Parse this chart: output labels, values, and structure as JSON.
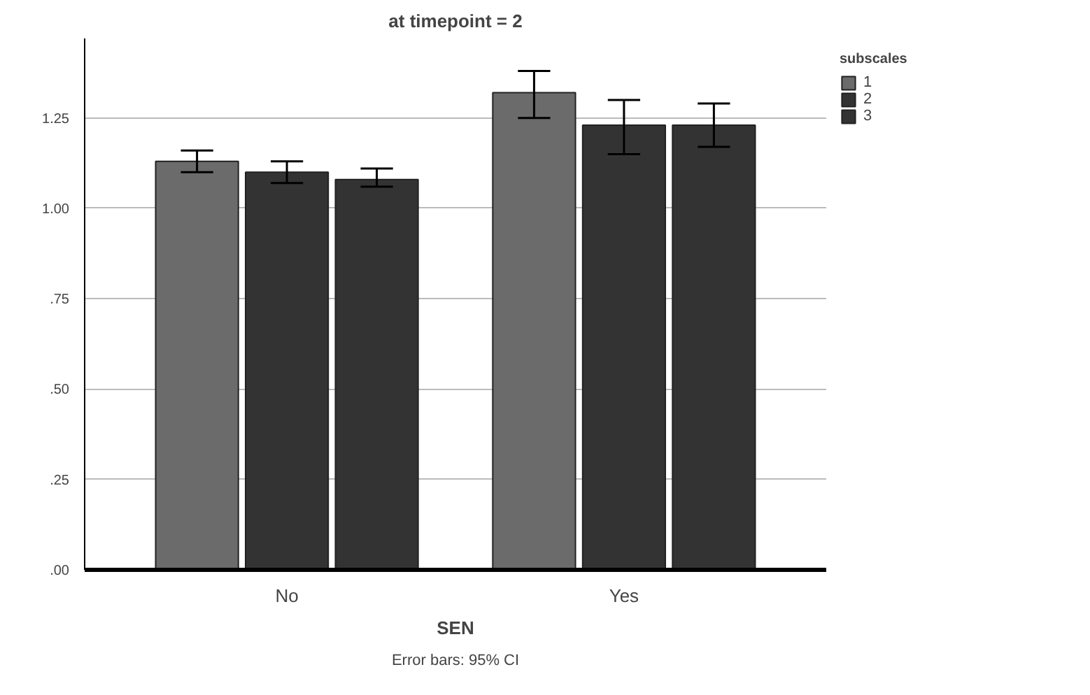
{
  "chart_data": {
    "type": "bar",
    "title": "at timepoint = 2",
    "xlabel": "SEN",
    "legend_title": "subscales",
    "categories": [
      "No",
      "Yes"
    ],
    "series": [
      {
        "name": "1",
        "color": "#6b6b6b",
        "values": [
          1.13,
          1.32
        ],
        "errors": [
          [
            1.1,
            1.16
          ],
          [
            1.25,
            1.38
          ]
        ]
      },
      {
        "name": "2",
        "color": "#333333",
        "values": [
          1.1,
          1.23
        ],
        "errors": [
          [
            1.07,
            1.13
          ],
          [
            1.15,
            1.3
          ]
        ]
      },
      {
        "name": "3",
        "color": "#333333",
        "values": [
          1.08,
          1.23
        ],
        "errors": [
          [
            1.06,
            1.11
          ],
          [
            1.17,
            1.29
          ]
        ]
      }
    ],
    "ylim": [
      0,
      1.47
    ],
    "yticks": [
      {
        "value": 0,
        "label": ".00"
      },
      {
        "value": 0.25,
        "label": ".25"
      },
      {
        "value": 0.5,
        "label": ".50"
      },
      {
        "value": 0.75,
        "label": ".75"
      },
      {
        "value": 1.0,
        "label": "1.00"
      },
      {
        "value": 1.25,
        "label": "1.25"
      }
    ],
    "grid": "y",
    "legend": "top right",
    "annotations": [
      "Error bars: 95% CI"
    ]
  }
}
